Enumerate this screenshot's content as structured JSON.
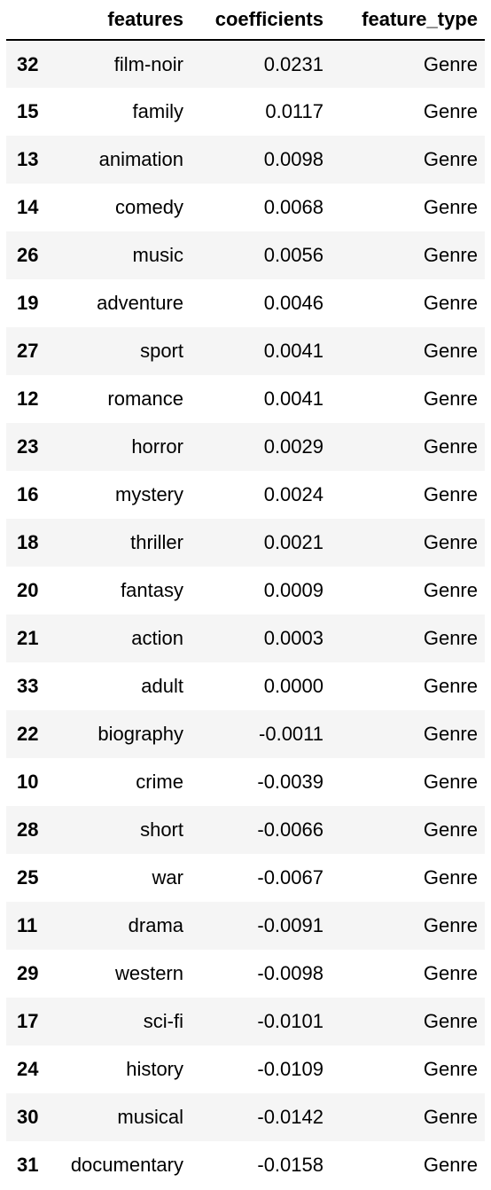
{
  "table": {
    "columns": {
      "index": "",
      "features": "features",
      "coefficients": "coefficients",
      "feature_type": "feature_type"
    },
    "rows": [
      {
        "index": "32",
        "features": "film-noir",
        "coefficients": "0.0231",
        "feature_type": "Genre"
      },
      {
        "index": "15",
        "features": "family",
        "coefficients": "0.0117",
        "feature_type": "Genre"
      },
      {
        "index": "13",
        "features": "animation",
        "coefficients": "0.0098",
        "feature_type": "Genre"
      },
      {
        "index": "14",
        "features": "comedy",
        "coefficients": "0.0068",
        "feature_type": "Genre"
      },
      {
        "index": "26",
        "features": "music",
        "coefficients": "0.0056",
        "feature_type": "Genre"
      },
      {
        "index": "19",
        "features": "adventure",
        "coefficients": "0.0046",
        "feature_type": "Genre"
      },
      {
        "index": "27",
        "features": "sport",
        "coefficients": "0.0041",
        "feature_type": "Genre"
      },
      {
        "index": "12",
        "features": "romance",
        "coefficients": "0.0041",
        "feature_type": "Genre"
      },
      {
        "index": "23",
        "features": "horror",
        "coefficients": "0.0029",
        "feature_type": "Genre"
      },
      {
        "index": "16",
        "features": "mystery",
        "coefficients": "0.0024",
        "feature_type": "Genre"
      },
      {
        "index": "18",
        "features": "thriller",
        "coefficients": "0.0021",
        "feature_type": "Genre"
      },
      {
        "index": "20",
        "features": "fantasy",
        "coefficients": "0.0009",
        "feature_type": "Genre"
      },
      {
        "index": "21",
        "features": "action",
        "coefficients": "0.0003",
        "feature_type": "Genre"
      },
      {
        "index": "33",
        "features": "adult",
        "coefficients": "0.0000",
        "feature_type": "Genre"
      },
      {
        "index": "22",
        "features": "biography",
        "coefficients": "-0.0011",
        "feature_type": "Genre"
      },
      {
        "index": "10",
        "features": "crime",
        "coefficients": "-0.0039",
        "feature_type": "Genre"
      },
      {
        "index": "28",
        "features": "short",
        "coefficients": "-0.0066",
        "feature_type": "Genre"
      },
      {
        "index": "25",
        "features": "war",
        "coefficients": "-0.0067",
        "feature_type": "Genre"
      },
      {
        "index": "11",
        "features": "drama",
        "coefficients": "-0.0091",
        "feature_type": "Genre"
      },
      {
        "index": "29",
        "features": "western",
        "coefficients": "-0.0098",
        "feature_type": "Genre"
      },
      {
        "index": "17",
        "features": "sci-fi",
        "coefficients": "-0.0101",
        "feature_type": "Genre"
      },
      {
        "index": "24",
        "features": "history",
        "coefficients": "-0.0109",
        "feature_type": "Genre"
      },
      {
        "index": "30",
        "features": "musical",
        "coefficients": "-0.0142",
        "feature_type": "Genre"
      },
      {
        "index": "31",
        "features": "documentary",
        "coefficients": "-0.0158",
        "feature_type": "Genre"
      }
    ]
  },
  "colors": {
    "stripe": "#f5f5f5",
    "background": "#ffffff",
    "text": "#000000",
    "header_rule": "#000000"
  }
}
